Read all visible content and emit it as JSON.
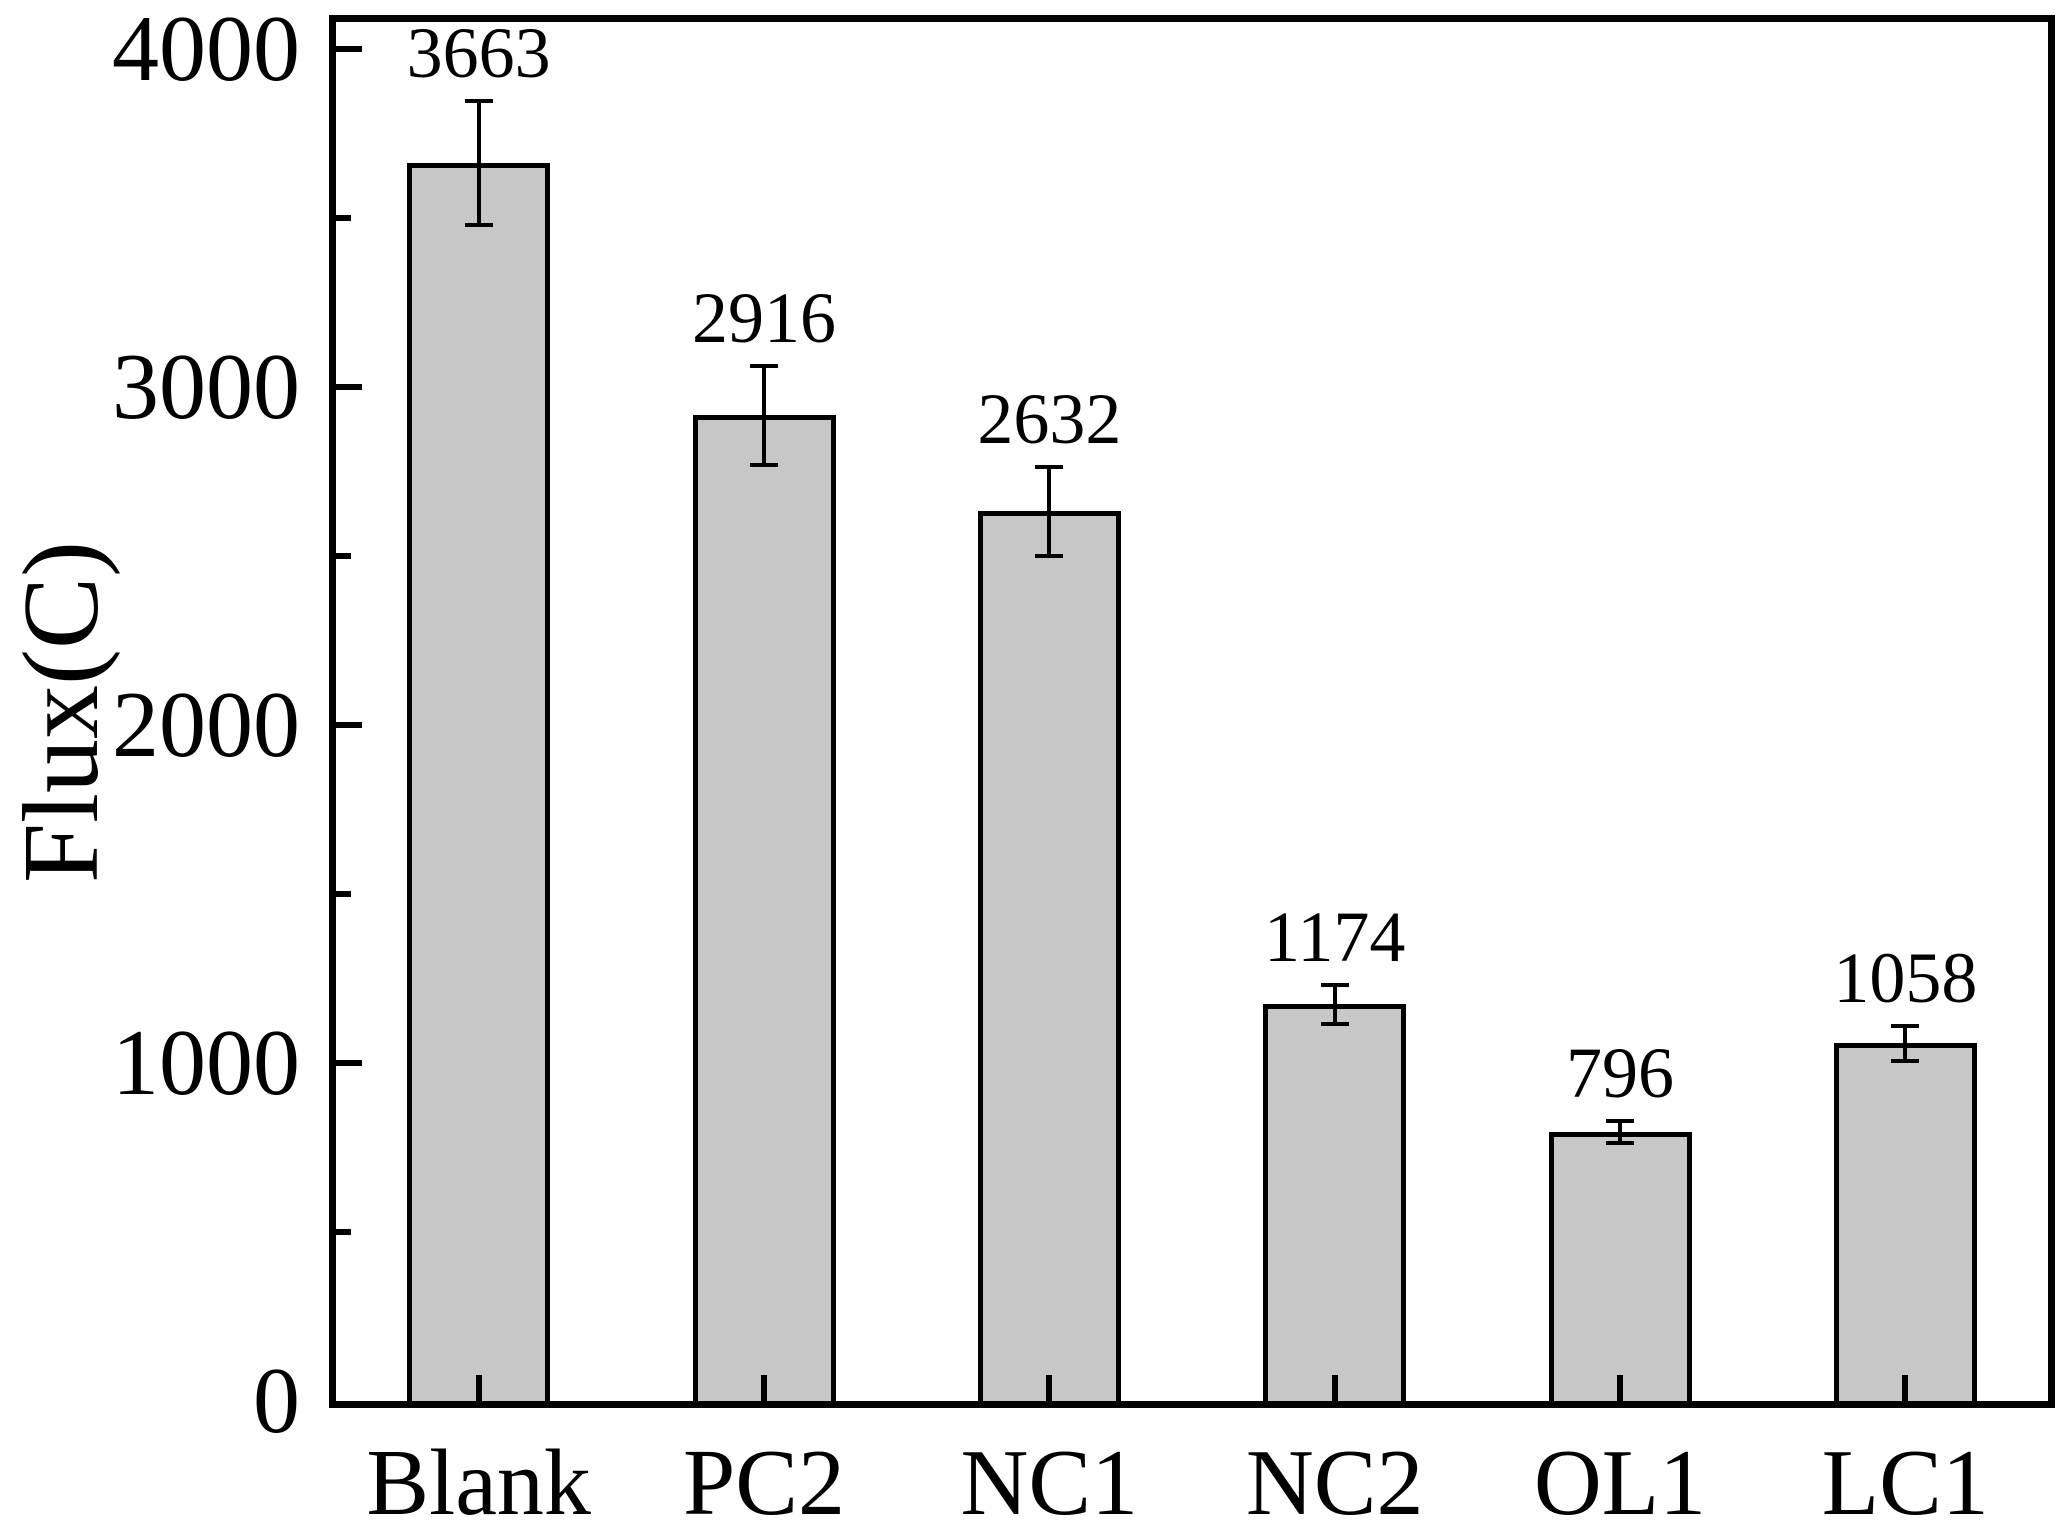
{
  "figure": {
    "background_color": "#ffffff",
    "axis_color": "#000000",
    "text_color": "#000000"
  },
  "chart_data": {
    "type": "bar",
    "title": "",
    "xlabel": "",
    "ylabel": "Flux(C)",
    "categories": [
      "Blank",
      "PC2",
      "NC1",
      "NC2",
      "OL1",
      "LC1"
    ],
    "values": [
      3663,
      2916,
      2632,
      1174,
      796,
      1058
    ],
    "value_labels": [
      "3663",
      "2916",
      "2632",
      "1174",
      "796",
      "1058"
    ],
    "errors": [
      184,
      146,
      132,
      58,
      33,
      52
    ],
    "error_bar_style": "caps",
    "error_bar_color": "#000000",
    "bar_fill_color": "#c7c7c7",
    "bar_edge_color": "#000000",
    "ylim": [
      0,
      4080
    ],
    "yticks": [
      0,
      1000,
      2000,
      3000,
      4000
    ],
    "ytick_labels": [
      "0",
      "1000",
      "2000",
      "3000",
      "4000"
    ],
    "minor_yticks": [
      500,
      1500,
      2500,
      3500
    ],
    "tick_direction": "in",
    "grid": false,
    "legend": null,
    "frame": "full-box"
  }
}
